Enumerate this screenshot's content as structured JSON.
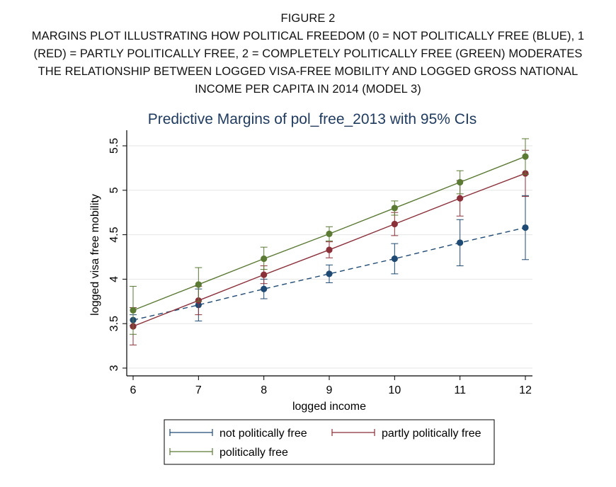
{
  "caption": {
    "figure_label": "FIGURE 2",
    "lines": [
      "MARGINS PLOT ILLUSTRATING HOW POLITICAL FREEDOM (0 = NOT POLITICALLY FREE (BLUE), 1",
      "(RED) = PARTLY POLITICALLY FREE, 2 = COMPLETELY POLITICALLY FREE (GREEN) MODERATES",
      "THE RELATIONSHIP BETWEEN LOGGED VISA-FREE MOBILITY AND LOGGED GROSS NATIONAL",
      "INCOME PER CAPITA IN 2014 (MODEL 3)"
    ]
  },
  "chart_data": {
    "type": "line",
    "title": "Predictive Margins of pol_free_2013 with 95% CIs",
    "xlabel": "logged income",
    "ylabel": "logged visa free mobility",
    "x": [
      6,
      7,
      8,
      9,
      10,
      11,
      12
    ],
    "xlim": [
      6,
      12
    ],
    "ylim": [
      3,
      5.5
    ],
    "xticks": [
      "6",
      "7",
      "8",
      "9",
      "10",
      "11",
      "12"
    ],
    "yticks": [
      "3",
      "3.5",
      "4",
      "4.5",
      "5",
      "5.5"
    ],
    "grid": true,
    "legend_position": "bottom",
    "series": [
      {
        "name": "not politically free",
        "color": "#1f4a73",
        "dashed": true,
        "values": [
          3.54,
          3.71,
          3.89,
          4.06,
          4.23,
          4.41,
          4.58
        ],
        "ci_low": [
          3.48,
          3.53,
          3.78,
          3.96,
          4.06,
          4.15,
          4.22
        ],
        "ci_high": [
          3.6,
          3.89,
          4.0,
          4.16,
          4.4,
          4.67,
          4.94
        ]
      },
      {
        "name": "partly politically free",
        "color": "#8b2f39",
        "dashed": false,
        "values": [
          3.47,
          3.76,
          4.05,
          4.33,
          4.62,
          4.91,
          5.19
        ],
        "ci_low": [
          3.26,
          3.6,
          3.95,
          4.24,
          4.49,
          4.71,
          4.93
        ],
        "ci_high": [
          3.68,
          3.92,
          4.15,
          4.42,
          4.75,
          5.11,
          5.45
        ]
      },
      {
        "name": "politically free",
        "color": "#5b7a34",
        "dashed": false,
        "values": [
          3.65,
          3.94,
          4.23,
          4.51,
          4.8,
          5.09,
          5.38
        ],
        "ci_low": [
          3.38,
          3.75,
          4.11,
          4.43,
          4.72,
          4.96,
          5.18
        ],
        "ci_high": [
          3.92,
          4.13,
          4.36,
          4.59,
          4.88,
          5.22,
          5.58
        ]
      }
    ]
  }
}
